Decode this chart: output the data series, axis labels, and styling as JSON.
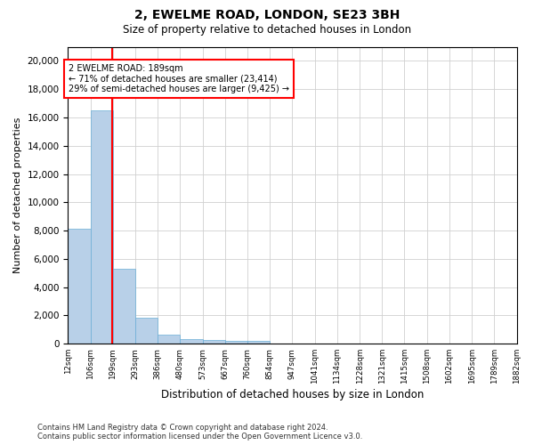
{
  "title": "2, EWELME ROAD, LONDON, SE23 3BH",
  "subtitle": "Size of property relative to detached houses in London",
  "xlabel": "Distribution of detached houses by size in London",
  "ylabel": "Number of detached properties",
  "bar_color": "#b8d0e8",
  "bar_edge_color": "#6aaed6",
  "vline_color": "red",
  "vline_bin_index": 1.97,
  "annotation_text": "2 EWELME ROAD: 189sqm\n← 71% of detached houses are smaller (23,414)\n29% of semi-detached houses are larger (9,425) →",
  "footnote1": "Contains HM Land Registry data © Crown copyright and database right 2024.",
  "footnote2": "Contains public sector information licensed under the Open Government Licence v3.0.",
  "bin_labels": [
    "12sqm",
    "106sqm",
    "199sqm",
    "293sqm",
    "386sqm",
    "480sqm",
    "573sqm",
    "667sqm",
    "760sqm",
    "854sqm",
    "947sqm",
    "1041sqm",
    "1134sqm",
    "1228sqm",
    "1321sqm",
    "1415sqm",
    "1508sqm",
    "1602sqm",
    "1695sqm",
    "1789sqm",
    "1882sqm"
  ],
  "bar_heights": [
    8100,
    16500,
    5300,
    1850,
    650,
    350,
    280,
    230,
    200,
    0,
    0,
    0,
    0,
    0,
    0,
    0,
    0,
    0,
    0,
    0
  ],
  "ylim": [
    0,
    21000
  ],
  "yticks": [
    0,
    2000,
    4000,
    6000,
    8000,
    10000,
    12000,
    14000,
    16000,
    18000,
    20000
  ],
  "background_color": "#ffffff",
  "grid_color": "#d0d0d0",
  "figwidth": 6.0,
  "figheight": 5.0,
  "dpi": 100
}
